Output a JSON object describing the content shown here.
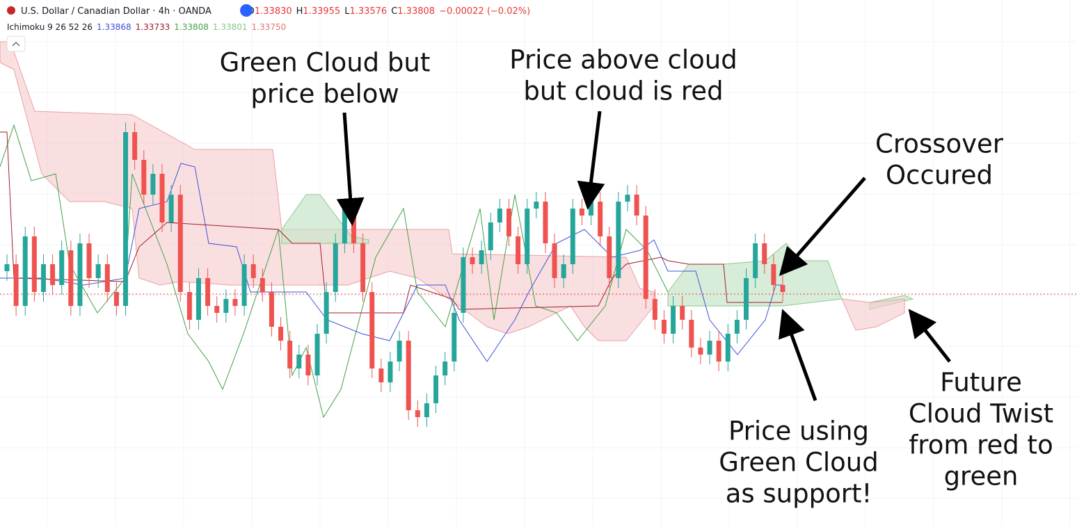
{
  "header": {
    "symbol": "U.S. Dollar / Canadian Dollar · 4h · OANDA",
    "ohlc": [
      {
        "label": "O",
        "value": "1.33830"
      },
      {
        "label": "H",
        "value": "1.33955"
      },
      {
        "label": "L",
        "value": "1.33576"
      },
      {
        "label": "C",
        "value": "1.33808"
      }
    ],
    "change": "−0.00022 (−0.02%)"
  },
  "indicator": {
    "name": "Ichimoku 9 26 52 26",
    "values": [
      "1.33868",
      "1.33733",
      "1.33808",
      "1.33801",
      "1.33750"
    ]
  },
  "annotations": [
    {
      "lines": [
        "Green Cloud but",
        "price below"
      ]
    },
    {
      "lines": [
        "Price above cloud",
        "but cloud is red"
      ]
    },
    {
      "lines": [
        "Crossover",
        "Occured"
      ]
    },
    {
      "lines": [
        "Price using",
        "Green Cloud",
        "as support!"
      ]
    },
    {
      "lines": [
        "Future",
        "Cloud Twist",
        "from red to",
        "green"
      ]
    }
  ]
}
